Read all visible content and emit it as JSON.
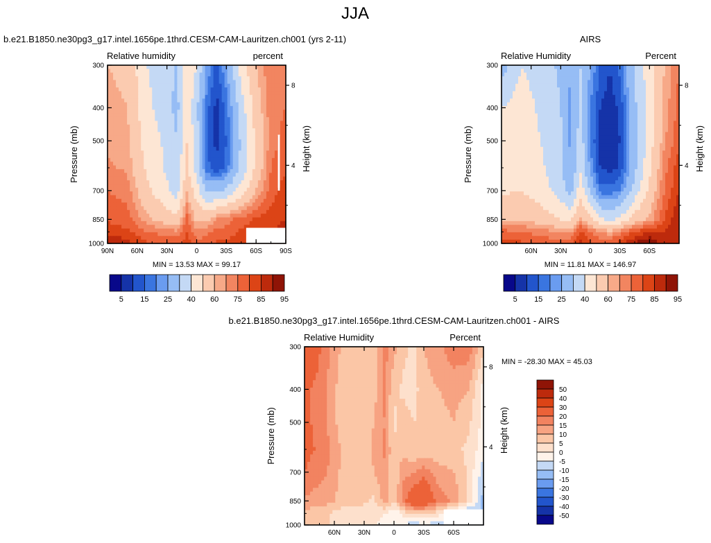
{
  "figure_title": "JJA",
  "colors": {
    "abs_scale": [
      "#08088a",
      "#1533a8",
      "#2255cc",
      "#3a75e0",
      "#6a9cf0",
      "#96bdf5",
      "#c4d9f5",
      "#fde6d4",
      "#fbcbb0",
      "#f7a988",
      "#f28560",
      "#ec6238",
      "#dc4416",
      "#bd2a0c",
      "#8f1406"
    ],
    "diff_scale": [
      "#08088a",
      "#1533a8",
      "#2255cc",
      "#3a75e0",
      "#6a9cf0",
      "#96bdf5",
      "#c4d9f5",
      "#fff3ea",
      "#fde0cc",
      "#fbc6a6",
      "#f7a382",
      "#f28360",
      "#ec6238",
      "#dc4416",
      "#bd2a0c",
      "#8f1406"
    ],
    "missing": "#ffffff"
  },
  "chart_data": [
    {
      "type": "heatmap",
      "title": "b.e21.B1850.ne30pg3_g17.intel.1656pe.1thrd.CESM-CAM-Lauritzen.ch001 (yrs 2-11)",
      "left_label": "Relative humidity",
      "right_label": "percent",
      "ylabel": "Pressure (mb)",
      "y2label": "Height (km)",
      "y_ticks": [
        "300",
        "400",
        "500",
        "700",
        "850",
        "1000"
      ],
      "y2_ticks": [
        "8",
        "4"
      ],
      "x_ticks": [
        "90N",
        "60N",
        "30N",
        "0",
        "30S",
        "60S",
        "90S"
      ],
      "stats": "MIN =  13.53   MAX =  99.17",
      "colorbar_labels": [
        "5",
        "15",
        "25",
        "40",
        "60",
        "75",
        "85",
        "95"
      ],
      "field": {
        "lats": [
          90,
          70,
          50,
          30,
          20,
          10,
          0,
          -10,
          -20,
          -30,
          -45,
          -60,
          -75,
          -90
        ],
        "pres": [
          300,
          400,
          500,
          600,
          700,
          850,
          925,
          1000
        ],
        "values": [
          [
            70,
            68,
            50,
            45,
            38,
            60,
            50,
            30,
            18,
            30,
            55,
            70,
            80,
            80
          ],
          [
            72,
            70,
            52,
            45,
            36,
            58,
            42,
            22,
            13,
            22,
            45,
            65,
            78,
            80
          ],
          [
            74,
            72,
            55,
            48,
            40,
            60,
            45,
            20,
            13,
            20,
            42,
            62,
            78,
            82
          ],
          [
            76,
            74,
            58,
            48,
            42,
            62,
            45,
            22,
            16,
            22,
            42,
            62,
            80,
            84
          ],
          [
            80,
            78,
            62,
            52,
            45,
            70,
            55,
            38,
            38,
            42,
            55,
            70,
            82,
            88
          ],
          [
            84,
            82,
            72,
            65,
            62,
            82,
            68,
            68,
            75,
            78,
            82,
            86,
            88,
            90
          ],
          [
            88,
            86,
            80,
            78,
            76,
            85,
            76,
            78,
            82,
            82,
            86,
            88,
            90,
            92
          ],
          [
            95,
            92,
            86,
            84,
            84,
            88,
            82,
            84,
            86,
            86,
            90,
            90,
            90,
            92
          ]
        ]
      }
    },
    {
      "type": "heatmap",
      "title": "AIRS",
      "left_label": "Relative Humidity",
      "right_label": "Percent",
      "ylabel": "Pressure (mb)",
      "y2label": "Height (km)",
      "y_ticks": [
        "300",
        "400",
        "500",
        "700",
        "850",
        "1000"
      ],
      "y2_ticks": [
        "8",
        "4"
      ],
      "x_ticks": [
        "60N",
        "30N",
        "0",
        "30S",
        "60S"
      ],
      "stats": "MIN =  11.81   MAX = 146.97",
      "colorbar_labels": [
        "5",
        "15",
        "25",
        "40",
        "60",
        "75",
        "85",
        "95"
      ],
      "field": {
        "lats": [
          90,
          70,
          50,
          30,
          20,
          10,
          0,
          -10,
          -20,
          -30,
          -45,
          -60,
          -75,
          -90
        ],
        "pres": [
          300,
          400,
          500,
          600,
          700,
          850,
          925,
          1000
        ],
        "values": [
          [
            35,
            50,
            45,
            38,
            30,
            40,
            30,
            20,
            15,
            22,
            42,
            55,
            70,
            80
          ],
          [
            50,
            55,
            48,
            40,
            28,
            42,
            25,
            15,
            12,
            16,
            38,
            55,
            72,
            82
          ],
          [
            52,
            56,
            50,
            42,
            28,
            46,
            25,
            13,
            12,
            15,
            36,
            55,
            74,
            84
          ],
          [
            54,
            58,
            52,
            42,
            30,
            48,
            28,
            15,
            13,
            16,
            38,
            58,
            78,
            88
          ],
          [
            58,
            60,
            55,
            45,
            35,
            56,
            38,
            22,
            22,
            25,
            44,
            62,
            80,
            90
          ],
          [
            70,
            70,
            65,
            60,
            58,
            72,
            62,
            52,
            48,
            52,
            65,
            72,
            85,
            95
          ],
          [
            82,
            80,
            78,
            75,
            74,
            86,
            80,
            75,
            72,
            78,
            85,
            90,
            90,
            95
          ],
          [
            88,
            86,
            84,
            82,
            82,
            92,
            86,
            84,
            84,
            88,
            96,
            100,
            92,
            95
          ]
        ]
      }
    },
    {
      "type": "heatmap",
      "title": "b.e21.B1850.ne30pg3_g17.intel.1656pe.1thrd.CESM-CAM-Lauritzen.ch001 - AIRS",
      "left_label": "Relative Humidity",
      "right_label": "Percent",
      "ylabel": "Pressure (mb)",
      "y2label": "Height (km)",
      "y_ticks": [
        "300",
        "400",
        "500",
        "700",
        "850",
        "1000"
      ],
      "y2_ticks": [
        "8",
        "4"
      ],
      "x_ticks": [
        "60N",
        "30N",
        "0",
        "30S",
        "60S"
      ],
      "stats": "MIN = -28.30   MAX =  45.03",
      "colorbar_labels": [
        "50",
        "40",
        "30",
        "20",
        "15",
        "10",
        "5",
        "0",
        "-5",
        "-10",
        "-15",
        "-20",
        "-30",
        "-40",
        "-50"
      ],
      "field": {
        "lats": [
          90,
          70,
          50,
          30,
          20,
          10,
          0,
          -10,
          -20,
          -30,
          -45,
          -60,
          -75,
          -90
        ],
        "pres": [
          300,
          400,
          500,
          600,
          700,
          850,
          925,
          1000
        ],
        "values": [
          [
            30,
            18,
            8,
            8,
            6,
            18,
            12,
            6,
            4,
            10,
            14,
            18,
            18,
            6
          ],
          [
            22,
            16,
            6,
            6,
            8,
            16,
            6,
            4,
            3,
            8,
            10,
            12,
            10,
            -2
          ],
          [
            22,
            16,
            6,
            6,
            10,
            15,
            4,
            7,
            5,
            6,
            8,
            10,
            6,
            -2
          ],
          [
            22,
            18,
            8,
            6,
            12,
            16,
            6,
            8,
            5,
            6,
            6,
            6,
            4,
            -3
          ],
          [
            20,
            16,
            8,
            5,
            10,
            14,
            6,
            14,
            14,
            18,
            12,
            10,
            4,
            -8
          ],
          [
            14,
            12,
            8,
            6,
            4,
            12,
            6,
            18,
            28,
            28,
            18,
            14,
            4,
            -12
          ],
          [
            8,
            6,
            2,
            2,
            2,
            1,
            -4,
            2,
            6,
            6,
            2,
            -6,
            -12,
            -10
          ],
          [
            6,
            6,
            2,
            2,
            2,
            -4,
            -4,
            -6,
            -8,
            -6,
            -8,
            -12,
            -10,
            -8
          ]
        ]
      }
    }
  ]
}
